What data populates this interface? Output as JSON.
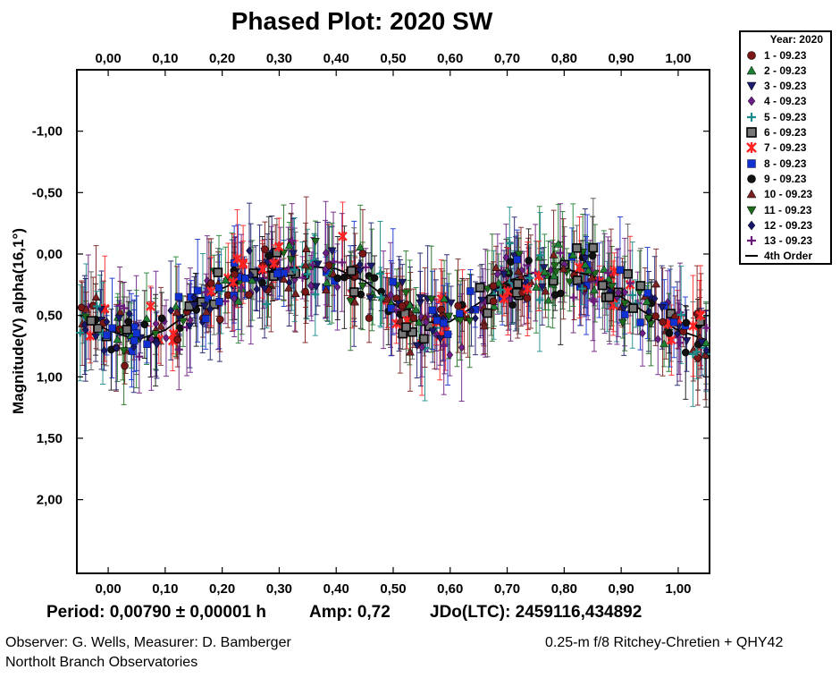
{
  "chart_data": {
    "type": "scatter",
    "title": "Phased Plot: 2020 SW",
    "ylabel": "Magnitude(V) alpha(16,1°)",
    "x_ticks": [
      "0,00",
      "0,10",
      "0,20",
      "0,30",
      "0,40",
      "0,50",
      "0,60",
      "0,70",
      "0,80",
      "0,90",
      "1,00"
    ],
    "y_ticks": [
      "-1,00",
      "-0,50",
      "0,00",
      "0,50",
      "1,00",
      "1,50",
      "2,00"
    ],
    "xlim": [
      -0.055,
      1.055
    ],
    "ylim": [
      -1.5,
      2.6
    ],
    "y_inverted": true,
    "legend": {
      "title": "Year: 2020",
      "entries": [
        {
          "label": "1 - 09.23",
          "marker": "circle",
          "color": "#7a1616"
        },
        {
          "label": "2 - 09.23",
          "marker": "triangle-up",
          "color": "#1f7f32"
        },
        {
          "label": "3 - 09.23",
          "marker": "triangle-down",
          "color": "#1b1b6e"
        },
        {
          "label": "4 - 09.23",
          "marker": "diamond",
          "color": "#6b1f86"
        },
        {
          "label": "5 - 09.23",
          "marker": "plus",
          "color": "#1a8a8a"
        },
        {
          "label": "6 - 09.23",
          "marker": "square-open",
          "color": "#555555"
        },
        {
          "label": "7 - 09.23",
          "marker": "asterisk",
          "color": "#ff2222"
        },
        {
          "label": "8 - 09.23",
          "marker": "square",
          "color": "#1030d0"
        },
        {
          "label": "9 - 09.23",
          "marker": "circle",
          "color": "#101010"
        },
        {
          "label": "10 - 09.23",
          "marker": "triangle-up",
          "color": "#7a2020"
        },
        {
          "label": "11 - 09.23",
          "marker": "triangle-down",
          "color": "#1d6a1d"
        },
        {
          "label": "12 - 09.23",
          "marker": "diamond",
          "color": "#18186a"
        },
        {
          "label": "13 - 09.23",
          "marker": "plus",
          "color": "#6a1a7a"
        },
        {
          "label": "4th Order",
          "marker": "line",
          "color": "#000000"
        }
      ]
    },
    "fit_curve": {
      "x": [
        0.0,
        0.05,
        0.1,
        0.15,
        0.2,
        0.25,
        0.3,
        0.35,
        0.4,
        0.45,
        0.5,
        0.55,
        0.6,
        0.65,
        0.7,
        0.75,
        0.8,
        0.85,
        0.9,
        0.95,
        1.0
      ],
      "y": [
        0.62,
        0.7,
        0.62,
        0.45,
        0.28,
        0.18,
        0.12,
        0.1,
        0.12,
        0.22,
        0.4,
        0.58,
        0.55,
        0.4,
        0.22,
        0.15,
        0.12,
        0.18,
        0.35,
        0.5,
        0.62
      ]
    },
    "period": "0,00790 ± 0,00001 h",
    "amplitude": "0,72",
    "jdo": "2459116,434892"
  },
  "footer": {
    "period_text": "Period: 0,00790 ± 0,00001 h",
    "amp_text": "Amp: 0,72",
    "jdo_text": "JDo(LTC): 2459116,434892",
    "observer": "Observer: G. Wells, Measurer: D. Bamberger",
    "observatory": "Northolt Branch Observatories",
    "telescope": "0.25-m f/8 Ritchey-Chretien + QHY42"
  }
}
